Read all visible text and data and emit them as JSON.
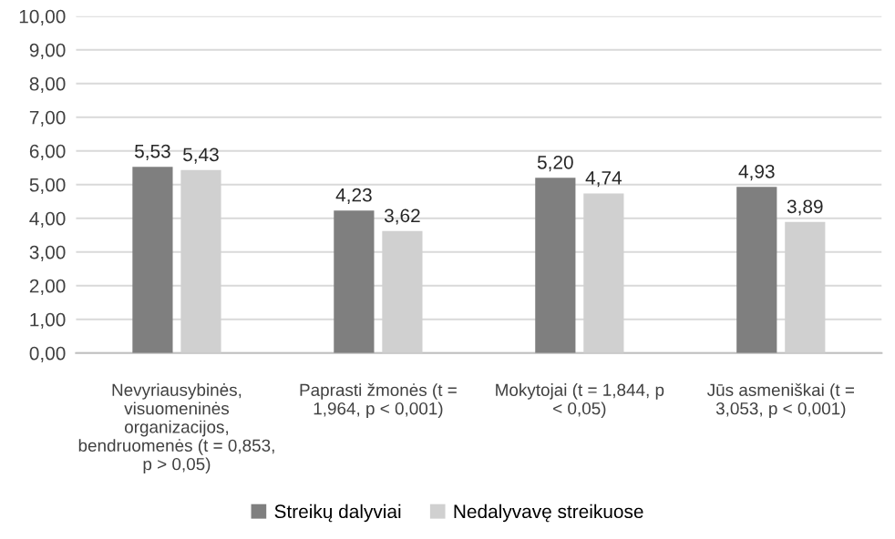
{
  "chart_data": {
    "type": "bar",
    "categories": [
      "Nevyriausybinės, visuomeninės organizacijos, bendruomenės (t = 0,853, p > 0,05)",
      "Paprasti žmonės (t = 1,964, p < 0,001)",
      "Mokytojai (t = 1,844, p < 0,05)",
      "Jūs asmeniškai (t = 3,053, p < 0,001)"
    ],
    "series": [
      {
        "name": "Streikų dalyviai",
        "color": "#7f7f7f",
        "values": [
          5.53,
          4.23,
          5.2,
          4.93
        ],
        "value_labels": [
          "5,53",
          "4,23",
          "5,20",
          "4,93"
        ]
      },
      {
        "name": "Nedalyvavę streikuose",
        "color": "#d0d0d0",
        "values": [
          5.43,
          3.62,
          4.74,
          3.89
        ],
        "value_labels": [
          "5,43",
          "3,62",
          "4,74",
          "3,89"
        ]
      }
    ],
    "ylim": [
      0,
      10
    ],
    "yticks": [
      {
        "value": 0,
        "label": "0,00"
      },
      {
        "value": 1,
        "label": "1,00"
      },
      {
        "value": 2,
        "label": "2,00"
      },
      {
        "value": 3,
        "label": "3,00"
      },
      {
        "value": 4,
        "label": "4,00"
      },
      {
        "value": 5,
        "label": "5,00"
      },
      {
        "value": 6,
        "label": "6,00"
      },
      {
        "value": 7,
        "label": "7,00"
      },
      {
        "value": 8,
        "label": "8,00"
      },
      {
        "value": 9,
        "label": "9,00"
      },
      {
        "value": 10,
        "label": "10,00"
      }
    ],
    "grid": "y",
    "legend": "bottom"
  }
}
